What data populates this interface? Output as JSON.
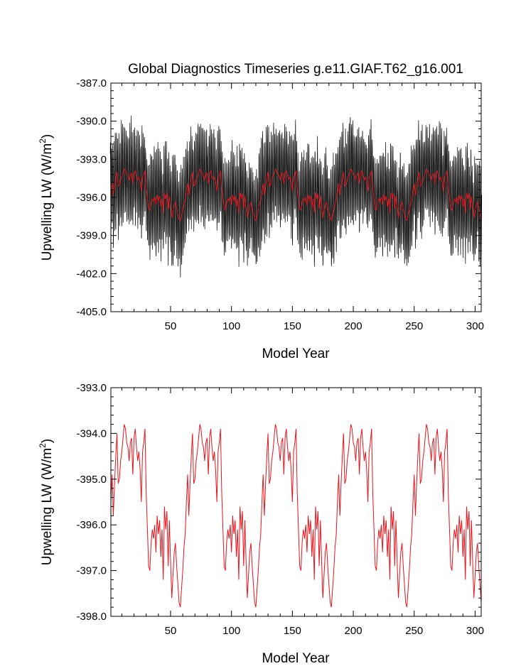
{
  "figure": {
    "title": "Global Diagnostics Timeseries g.e11.GIAF.T62_g16.001"
  },
  "colors": {
    "monthly": "#000000",
    "annual": "#e8141b",
    "axis": "#000000"
  },
  "chart_data": [
    {
      "type": "line",
      "title": "Global Diagnostics Timeseries g.e11.GIAF.T62_g16.001",
      "xlabel": "Model Year",
      "ylabel_main": "Upwelling LW (W/m",
      "ylabel_sup": "2",
      "ylabel_end": ")",
      "xlim": [
        1,
        305
      ],
      "ylim": [
        -405.0,
        -387.0
      ],
      "xticks": [
        50,
        100,
        150,
        200,
        250,
        300
      ],
      "xtick_labels": [
        "50",
        "100",
        "150",
        "200",
        "250",
        "300"
      ],
      "yticks": [
        -405.0,
        -402.0,
        -399.0,
        -396.0,
        -393.0,
        -390.0,
        -387.0
      ],
      "ytick_labels": [
        "-405.0",
        "-402.0",
        "-399.0",
        "-396.0",
        "-393.0",
        "-390.0",
        "-387.0"
      ],
      "grid": false,
      "series": [
        {
          "kind": "monthly",
          "generator": "annual_mean_plus_seasonal_cycle",
          "seasonal_amplitude": 3.0,
          "noise_amplitude": 0.6,
          "extreme_range": [
            -402.3,
            -389.2
          ]
        },
        {
          "kind": "annual",
          "generator": "annual_mean",
          "range": [
            -397.9,
            -393.6
          ]
        }
      ]
    },
    {
      "type": "line",
      "xlabel": "Model Year",
      "ylabel_main": "Upwelling LW (W/m",
      "ylabel_sup": "2",
      "ylabel_end": ")",
      "xlim": [
        1,
        305
      ],
      "ylim": [
        -398.0,
        -393.0
      ],
      "xticks": [
        50,
        100,
        150,
        200,
        250,
        300
      ],
      "xtick_labels": [
        "50",
        "100",
        "150",
        "200",
        "250",
        "300"
      ],
      "yticks": [
        -398.0,
        -397.0,
        -396.0,
        -395.0,
        -394.0,
        -393.0
      ],
      "ytick_labels": [
        "-398.0",
        "-397.0",
        "-396.0",
        "-395.0",
        "-394.0",
        "-393.0"
      ],
      "grid": false,
      "cycle_length_years": 62,
      "annual_mean_one_cycle": [
        -395.5,
        -394.9,
        -395.8,
        -395.1,
        -394.5,
        -394.0,
        -395.1,
        -395.0,
        -394.6,
        -394.4,
        -394.1,
        -393.8,
        -393.9,
        -394.2,
        -394.3,
        -394.6,
        -394.2,
        -394.1,
        -394.9,
        -394.1,
        -393.9,
        -394.3,
        -394.6,
        -394.4,
        -394.8,
        -395.5,
        -394.4,
        -394.2,
        -393.9,
        -395.3,
        -396.1,
        -396.9,
        -397.0,
        -396.4,
        -396.1,
        -396.3,
        -396.0,
        -396.6,
        -395.8,
        -396.2,
        -395.9,
        -396.7,
        -396.1,
        -397.2,
        -395.6,
        -396.1,
        -395.7,
        -396.9,
        -395.9,
        -396.8,
        -397.6,
        -397.1,
        -396.6,
        -396.4,
        -396.9,
        -397.3,
        -397.7,
        -397.8,
        -397.4,
        -397.0,
        -396.5,
        -396.2
      ],
      "series": [
        {
          "kind": "annual",
          "generator": "annual_mean",
          "range": [
            -397.9,
            -393.6
          ]
        }
      ]
    }
  ]
}
